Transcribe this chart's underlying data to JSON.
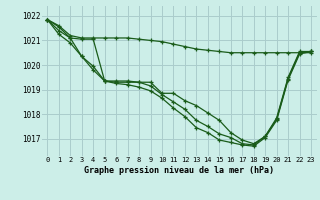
{
  "background_color": "#cceee8",
  "grid_color": "#aacccc",
  "line_color": "#1a5c1a",
  "title": "Graphe pression niveau de la mer (hPa)",
  "xlim": [
    -0.5,
    23.5
  ],
  "ylim": [
    1016.3,
    1022.4
  ],
  "yticks": [
    1017,
    1018,
    1019,
    1020,
    1021,
    1022
  ],
  "xticks": [
    0,
    1,
    2,
    3,
    4,
    5,
    6,
    7,
    8,
    9,
    10,
    11,
    12,
    13,
    14,
    15,
    16,
    17,
    18,
    19,
    20,
    21,
    22,
    23
  ],
  "series": [
    {
      "x": [
        0,
        1,
        2,
        3,
        4,
        5,
        6,
        7,
        8,
        9,
        10,
        11,
        12,
        13,
        14,
        15,
        16,
        17,
        18,
        19,
        20,
        21,
        22,
        23
      ],
      "y": [
        1021.85,
        1021.6,
        1021.2,
        1021.1,
        1021.1,
        1021.1,
        1021.1,
        1021.1,
        1021.05,
        1021.0,
        1020.95,
        1020.85,
        1020.75,
        1020.65,
        1020.6,
        1020.55,
        1020.5,
        1020.5,
        1020.5,
        1020.5,
        1020.5,
        1020.5,
        1020.5,
        1020.5
      ]
    },
    {
      "x": [
        0,
        1,
        2,
        3,
        4,
        5,
        6,
        7,
        8,
        9,
        10,
        11,
        12,
        13,
        14,
        15,
        16,
        17,
        18,
        19,
        20,
        21,
        22,
        23
      ],
      "y": [
        1021.85,
        1021.55,
        1021.1,
        1021.05,
        1021.05,
        1019.35,
        1019.35,
        1019.35,
        1019.3,
        1019.3,
        1018.85,
        1018.85,
        1018.55,
        1018.35,
        1018.05,
        1017.75,
        1017.25,
        1016.95,
        1016.8,
        1017.1,
        1017.85,
        1019.5,
        1020.55,
        1020.55
      ]
    },
    {
      "x": [
        0,
        1,
        2,
        3,
        4,
        5,
        6,
        7,
        8,
        9,
        10,
        11,
        12,
        13,
        14,
        15,
        16,
        17,
        18,
        19,
        20,
        21,
        22,
        23
      ],
      "y": [
        1021.85,
        1021.4,
        1021.1,
        1020.35,
        1019.95,
        1019.35,
        1019.3,
        1019.3,
        1019.3,
        1019.15,
        1018.8,
        1018.5,
        1018.2,
        1017.75,
        1017.5,
        1017.2,
        1017.05,
        1016.8,
        1016.75,
        1017.1,
        1017.8,
        1019.45,
        1020.5,
        1020.55
      ]
    },
    {
      "x": [
        0,
        1,
        2,
        3,
        4,
        5,
        6,
        7,
        8,
        9,
        10,
        11,
        12,
        13,
        14,
        15,
        16,
        17,
        18,
        19,
        20,
        21,
        22,
        23
      ],
      "y": [
        1021.85,
        1021.25,
        1020.9,
        1020.35,
        1019.8,
        1019.35,
        1019.25,
        1019.2,
        1019.1,
        1018.95,
        1018.65,
        1018.25,
        1017.9,
        1017.45,
        1017.25,
        1016.95,
        1016.85,
        1016.75,
        1016.7,
        1017.05,
        1017.75,
        1019.4,
        1020.45,
        1020.55
      ]
    }
  ]
}
